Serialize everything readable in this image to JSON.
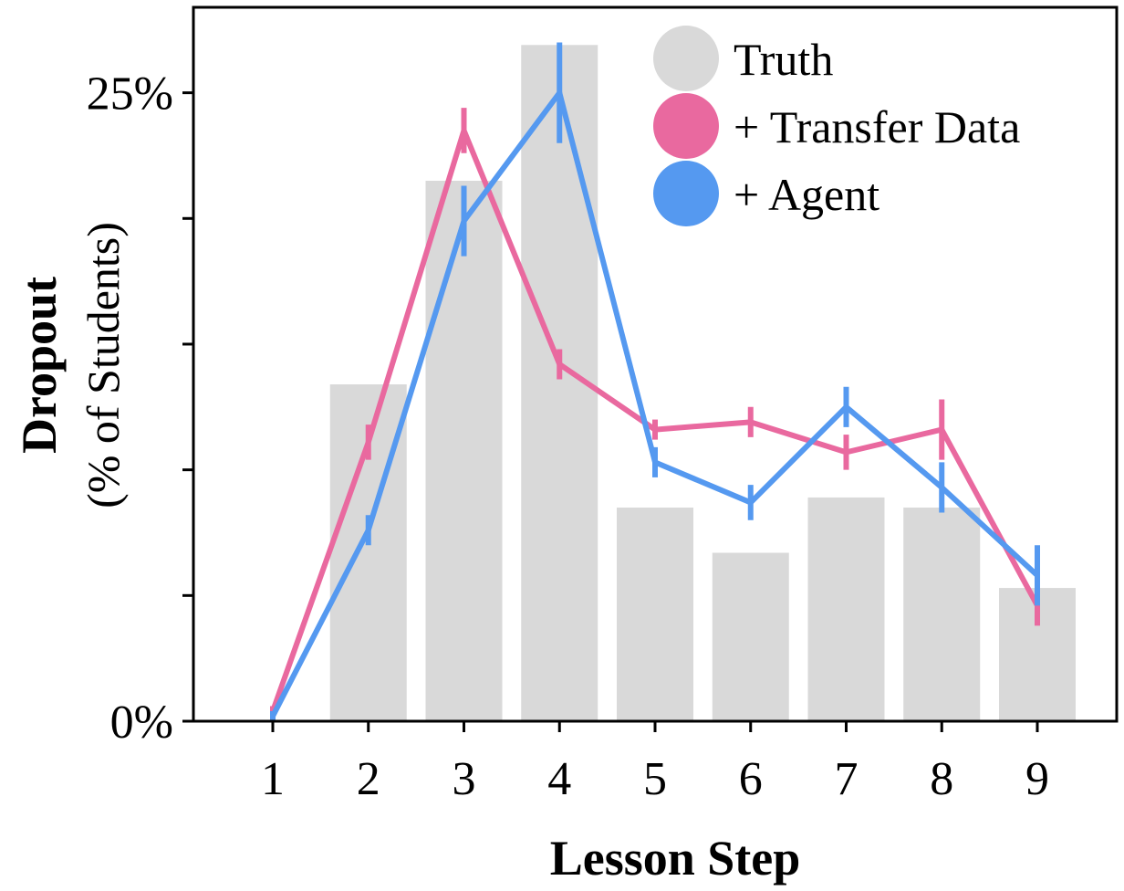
{
  "chart_data": {
    "type": "bar",
    "categories": [
      "1",
      "2",
      "3",
      "4",
      "5",
      "6",
      "7",
      "8",
      "9"
    ],
    "xlabel": "Lesson Step",
    "ylabel_main": "Dropout",
    "ylabel_sub": "(% of Students)",
    "ylim": [
      0,
      28.4
    ],
    "yticks": [
      0,
      5,
      10,
      15,
      20,
      25
    ],
    "ytick_labels": [
      "0%",
      "",
      "",
      "",
      "",
      "25%"
    ],
    "grid": false,
    "legend_position": "top-right",
    "series": [
      {
        "name": "Truth",
        "kind": "bar",
        "color": "#d9d9d9",
        "values": [
          null,
          13.4,
          21.5,
          26.9,
          8.5,
          6.7,
          8.9,
          8.5,
          5.3
        ]
      },
      {
        "name": "+ Transfer Data",
        "kind": "line",
        "color": "#e9699f",
        "values": [
          0.4,
          11.1,
          23.5,
          14.2,
          11.6,
          11.9,
          10.7,
          11.6,
          4.6
        ],
        "error": [
          0.2,
          0.7,
          0.9,
          0.6,
          0.4,
          0.6,
          0.7,
          1.2,
          0.8
        ]
      },
      {
        "name": "+ Agent",
        "kind": "line",
        "color": "#5599f0",
        "values": [
          0.2,
          7.6,
          19.9,
          25.0,
          10.3,
          8.7,
          12.5,
          9.3,
          5.8
        ],
        "error": [
          0.2,
          0.6,
          1.4,
          2.0,
          0.6,
          0.7,
          0.8,
          1.0,
          1.2
        ]
      }
    ]
  }
}
